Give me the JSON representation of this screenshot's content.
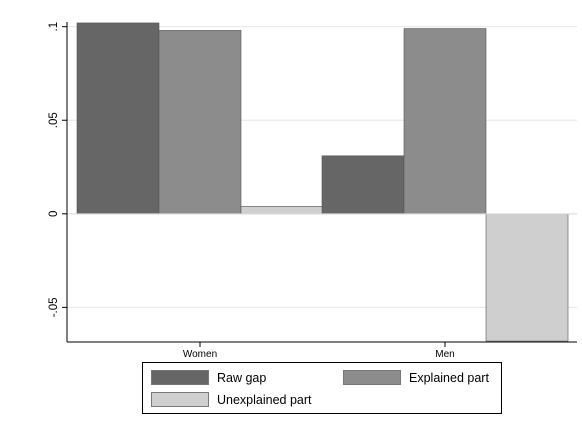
{
  "chart_data": {
    "type": "bar",
    "categories": [
      "Women",
      "Men"
    ],
    "series": [
      {
        "name": "Raw gap",
        "values": [
          0.102,
          0.031
        ],
        "color": "#666666"
      },
      {
        "name": "Explained part",
        "values": [
          0.098,
          0.099
        ],
        "color": "#8c8c8c"
      },
      {
        "name": "Unexplained part",
        "values": [
          0.004,
          -0.068
        ],
        "color": "#cfcfcf"
      }
    ],
    "yticks": [
      {
        "value": -0.05,
        "label": "-.05"
      },
      {
        "value": 0,
        "label": "0"
      },
      {
        "value": 0.05,
        "label": ".05"
      },
      {
        "value": 0.1,
        "label": ".1"
      }
    ],
    "ylim": [
      -0.0685,
      0.1025
    ],
    "grid": true,
    "legend_position": "bottom",
    "title": "",
    "xlabel": "",
    "ylabel": ""
  }
}
